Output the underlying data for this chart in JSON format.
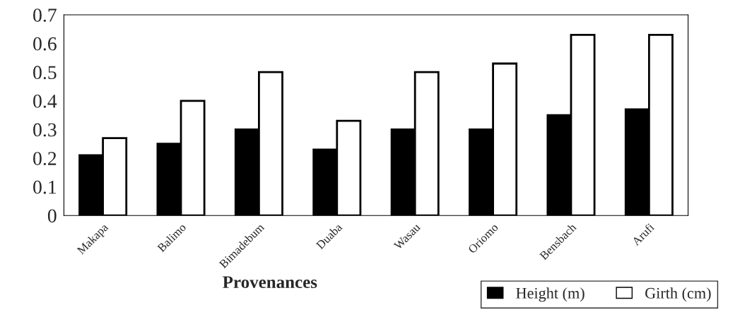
{
  "chart_data": {
    "type": "bar",
    "xlabel": "Provenances",
    "categories": [
      "Makapa",
      "Balimo",
      "Bimadebum",
      "Duaba",
      "Wasau",
      "Oriomo",
      "Bensbach",
      "Arufi"
    ],
    "series": [
      {
        "name": "Height (m)",
        "color": "#000000",
        "values": [
          0.21,
          0.25,
          0.3,
          0.23,
          0.3,
          0.3,
          0.35,
          0.37
        ]
      },
      {
        "name": "Girth (cm)",
        "color": "#ffffff",
        "values": [
          0.27,
          0.4,
          0.5,
          0.33,
          0.5,
          0.53,
          0.63,
          0.63
        ]
      }
    ],
    "ylim": [
      0,
      0.7
    ],
    "yticks": [
      0,
      0.1,
      0.2,
      0.3,
      0.4,
      0.5,
      0.6,
      0.7
    ],
    "grid": false,
    "legend": "bottom right"
  }
}
